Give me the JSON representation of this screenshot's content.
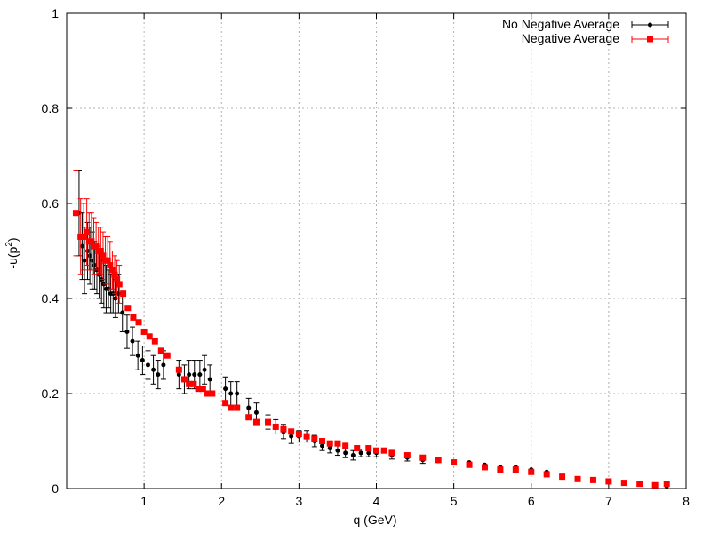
{
  "chart_data": {
    "type": "scatter",
    "xlabel": "q (GeV)",
    "ylabel": "-u(p",
    "ylabel_sup": "2",
    "ylabel_tail": ")",
    "xlim": [
      0,
      8
    ],
    "ylim": [
      0,
      1
    ],
    "xticks": [
      "1",
      "2",
      "3",
      "4",
      "5",
      "6",
      "7",
      "8"
    ],
    "yticks": [
      "0",
      "0.2",
      "0.4",
      "0.6",
      "0.8",
      "1"
    ],
    "xtick_values": [
      1,
      2,
      3,
      4,
      5,
      6,
      7,
      8
    ],
    "ytick_values": [
      0,
      0.2,
      0.4,
      0.6,
      0.8,
      1
    ],
    "grid": true,
    "legend_position": "top-right",
    "series": [
      {
        "name": "No Negative Average",
        "color": "#000000",
        "marker": "circle",
        "x": [
          0.16,
          0.2,
          0.23,
          0.27,
          0.3,
          0.33,
          0.36,
          0.39,
          0.42,
          0.45,
          0.48,
          0.51,
          0.54,
          0.57,
          0.6,
          0.63,
          0.67,
          0.72,
          0.78,
          0.85,
          0.92,
          0.98,
          1.05,
          1.12,
          1.18,
          1.25,
          1.45,
          1.52,
          1.58,
          1.65,
          1.72,
          1.78,
          1.85,
          2.05,
          2.12,
          2.2,
          2.35,
          2.45,
          2.6,
          2.7,
          2.8,
          2.9,
          3.0,
          3.1,
          3.2,
          3.3,
          3.4,
          3.5,
          3.6,
          3.7,
          3.8,
          3.9,
          4.0,
          4.2,
          4.4,
          4.6,
          4.8,
          5.0,
          5.2,
          5.4,
          5.6,
          5.8,
          6.0,
          6.2,
          6.4,
          6.6,
          6.8,
          7.0,
          7.2,
          7.4,
          7.6,
          7.75
        ],
        "y": [
          0.58,
          0.51,
          0.48,
          0.5,
          0.49,
          0.48,
          0.47,
          0.46,
          0.45,
          0.44,
          0.43,
          0.42,
          0.42,
          0.41,
          0.41,
          0.4,
          0.41,
          0.37,
          0.33,
          0.31,
          0.28,
          0.27,
          0.26,
          0.25,
          0.24,
          0.26,
          0.24,
          0.23,
          0.24,
          0.24,
          0.24,
          0.25,
          0.23,
          0.21,
          0.2,
          0.2,
          0.17,
          0.16,
          0.14,
          0.13,
          0.12,
          0.11,
          0.11,
          0.11,
          0.1,
          0.09,
          0.085,
          0.08,
          0.075,
          0.07,
          0.075,
          0.075,
          0.075,
          0.07,
          0.065,
          0.06,
          0.058,
          0.055,
          0.055,
          0.05,
          0.045,
          0.045,
          0.04,
          0.035,
          0.025,
          0.02,
          0.018,
          0.015,
          0.012,
          0.01,
          0.008,
          0.005
        ],
        "err": [
          0.09,
          0.07,
          0.07,
          0.06,
          0.06,
          0.06,
          0.05,
          0.05,
          0.05,
          0.05,
          0.05,
          0.05,
          0.04,
          0.04,
          0.04,
          0.04,
          0.04,
          0.04,
          0.035,
          0.03,
          0.03,
          0.03,
          0.03,
          0.03,
          0.03,
          0.03,
          0.03,
          0.03,
          0.03,
          0.03,
          0.03,
          0.03,
          0.03,
          0.025,
          0.025,
          0.025,
          0.02,
          0.02,
          0.015,
          0.015,
          0.015,
          0.015,
          0.012,
          0.012,
          0.012,
          0.01,
          0.01,
          0.01,
          0.01,
          0.01,
          0.008,
          0.008,
          0.008,
          0.008,
          0.007,
          0.007,
          0.006,
          0.006,
          0.006,
          0.005,
          0.005,
          0.005,
          0.005,
          0.005,
          0.004,
          0.004,
          0.004,
          0.004,
          0.004,
          0.003,
          0.003,
          0.003
        ]
      },
      {
        "name": "Negative Average",
        "color": "#ff0000",
        "marker": "square",
        "x": [
          0.12,
          0.18,
          0.22,
          0.26,
          0.29,
          0.32,
          0.35,
          0.38,
          0.41,
          0.44,
          0.47,
          0.5,
          0.53,
          0.56,
          0.59,
          0.62,
          0.65,
          0.68,
          0.73,
          0.79,
          0.86,
          0.93,
          1.0,
          1.07,
          1.14,
          1.22,
          1.3,
          1.45,
          1.52,
          1.58,
          1.64,
          1.7,
          1.76,
          1.82,
          1.88,
          2.05,
          2.12,
          2.2,
          2.35,
          2.45,
          2.6,
          2.7,
          2.8,
          2.9,
          3.0,
          3.1,
          3.2,
          3.3,
          3.4,
          3.5,
          3.6,
          3.75,
          3.9,
          4.0,
          4.1,
          4.2,
          4.4,
          4.6,
          4.8,
          5.0,
          5.2,
          5.4,
          5.6,
          5.8,
          6.0,
          6.2,
          6.4,
          6.6,
          6.8,
          7.0,
          7.2,
          7.4,
          7.6,
          7.75
        ],
        "y": [
          0.58,
          0.53,
          0.53,
          0.54,
          0.52,
          0.52,
          0.51,
          0.51,
          0.5,
          0.5,
          0.49,
          0.48,
          0.48,
          0.47,
          0.46,
          0.45,
          0.44,
          0.43,
          0.41,
          0.38,
          0.36,
          0.35,
          0.33,
          0.32,
          0.31,
          0.29,
          0.28,
          0.25,
          0.23,
          0.22,
          0.22,
          0.21,
          0.21,
          0.2,
          0.2,
          0.18,
          0.17,
          0.17,
          0.15,
          0.14,
          0.14,
          0.13,
          0.125,
          0.12,
          0.115,
          0.11,
          0.105,
          0.1,
          0.095,
          0.095,
          0.09,
          0.085,
          0.085,
          0.08,
          0.08,
          0.075,
          0.07,
          0.065,
          0.06,
          0.055,
          0.05,
          0.045,
          0.04,
          0.04,
          0.035,
          0.03,
          0.025,
          0.02,
          0.018,
          0.015,
          0.012,
          0.01,
          0.007,
          0.01
        ],
        "err": [
          0.09,
          0.08,
          0.07,
          0.07,
          0.06,
          0.06,
          0.06,
          0.05,
          0.05,
          0.05,
          0.05,
          0.05,
          0.05,
          0.05,
          0.04,
          0.04,
          0.04,
          0.04,
          0.004,
          0.004,
          0.004,
          0.004,
          0.004,
          0.004,
          0.004,
          0.004,
          0.004,
          0.004,
          0.004,
          0.004,
          0.004,
          0.004,
          0.004,
          0.004,
          0.004,
          0.004,
          0.004,
          0.004,
          0.004,
          0.004,
          0.004,
          0.004,
          0.004,
          0.004,
          0.004,
          0.004,
          0.004,
          0.004,
          0.004,
          0.004,
          0.004,
          0.004,
          0.004,
          0.004,
          0.004,
          0.004,
          0.004,
          0.004,
          0.004,
          0.004,
          0.004,
          0.004,
          0.004,
          0.004,
          0.004,
          0.004,
          0.004,
          0.004,
          0.004,
          0.004,
          0.004,
          0.004,
          0.004,
          0.004
        ]
      }
    ]
  }
}
